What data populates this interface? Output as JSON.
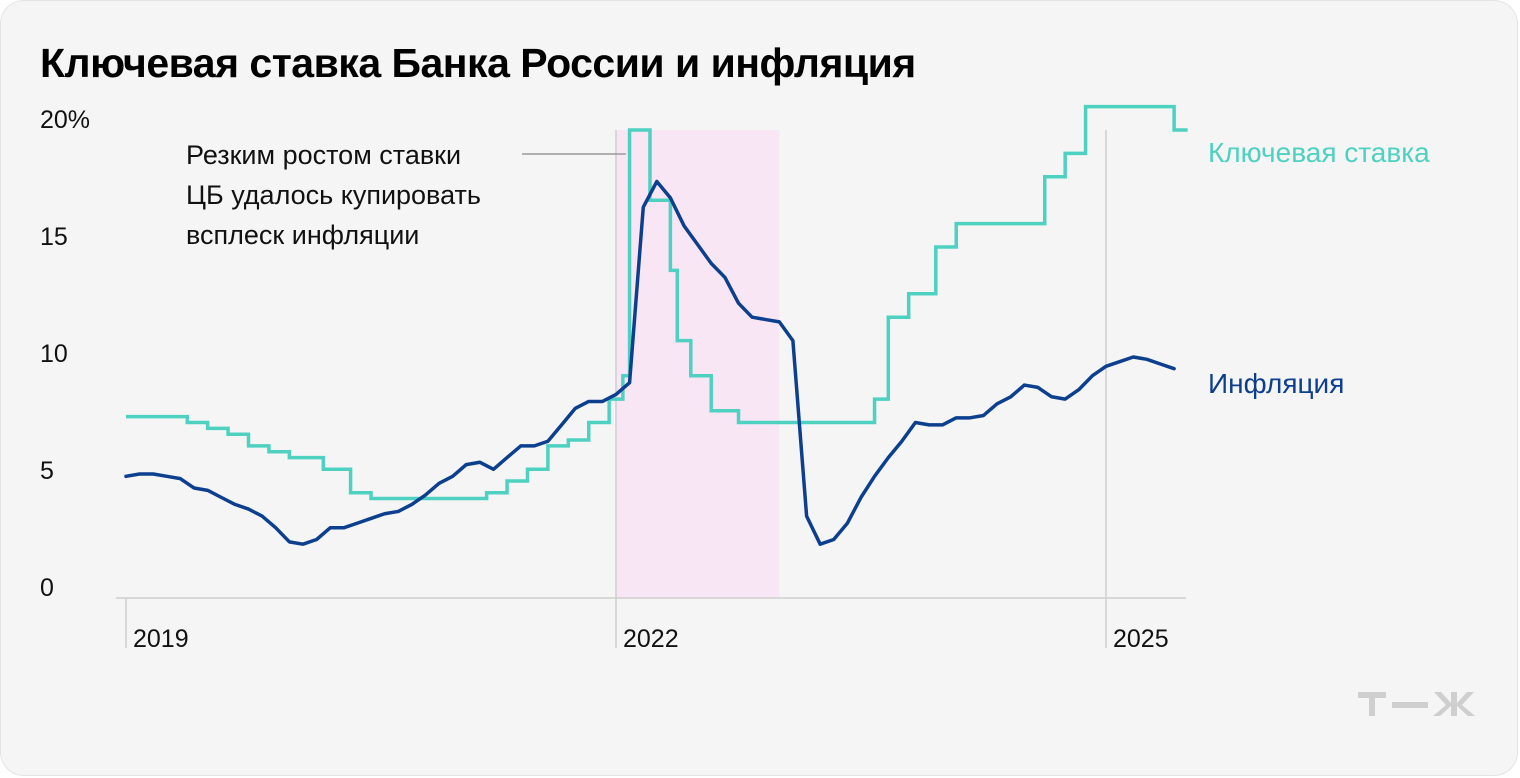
{
  "title": "Ключевая ставка Банка России и инфляция",
  "logo_text": "т—ж",
  "annotation": [
    "Резким ростом ставки",
    "ЦБ удалось купировать",
    "всплеск инфляции"
  ],
  "colors": {
    "rate": "#4fd1c1",
    "inflation": "#0d3f8f",
    "highlight": "#f8e6f5",
    "grid": "#cfcfcf"
  },
  "chart_data": {
    "type": "line",
    "title": "Ключевая ставка Банка России и инфляция",
    "xlabel": "",
    "ylabel": "",
    "ylim": [
      0,
      20
    ],
    "xlim": [
      2019.0,
      2025.5
    ],
    "yticks": [
      {
        "value": 0,
        "label": "0"
      },
      {
        "value": 5,
        "label": "5"
      },
      {
        "value": 10,
        "label": "10"
      },
      {
        "value": 15,
        "label": "15"
      },
      {
        "value": 20,
        "label": "20%"
      }
    ],
    "xticks": [
      {
        "value": 2019,
        "label": "2019"
      },
      {
        "value": 2022,
        "label": "2022"
      },
      {
        "value": 2025,
        "label": "2025"
      }
    ],
    "highlight_range": [
      2022.0,
      2023.0
    ],
    "series": [
      {
        "name": "Ключевая ставка",
        "style": "step",
        "points": [
          [
            2019.0,
            7.75
          ],
          [
            2019.375,
            7.5
          ],
          [
            2019.5,
            7.25
          ],
          [
            2019.625,
            7.0
          ],
          [
            2019.75,
            6.5
          ],
          [
            2019.875,
            6.25
          ],
          [
            2020.0,
            6.0
          ],
          [
            2020.208,
            5.5
          ],
          [
            2020.375,
            4.5
          ],
          [
            2020.5,
            4.25
          ],
          [
            2021.208,
            4.5
          ],
          [
            2021.333,
            5.0
          ],
          [
            2021.458,
            5.5
          ],
          [
            2021.583,
            6.5
          ],
          [
            2021.708,
            6.75
          ],
          [
            2021.833,
            7.5
          ],
          [
            2021.958,
            8.5
          ],
          [
            2022.042,
            9.5
          ],
          [
            2022.083,
            20.0
          ],
          [
            2022.208,
            17.0
          ],
          [
            2022.333,
            14.0
          ],
          [
            2022.375,
            11.0
          ],
          [
            2022.458,
            9.5
          ],
          [
            2022.583,
            8.0
          ],
          [
            2022.75,
            7.5
          ],
          [
            2023.583,
            8.5
          ],
          [
            2023.667,
            12.0
          ],
          [
            2023.792,
            13.0
          ],
          [
            2023.958,
            15.0
          ],
          [
            2024.083,
            16.0
          ],
          [
            2024.625,
            18.0
          ],
          [
            2024.75,
            19.0
          ],
          [
            2024.875,
            21.0
          ],
          [
            2025.417,
            20.0
          ],
          [
            2025.5,
            20.0
          ]
        ]
      },
      {
        "name": "Инфляция",
        "style": "line",
        "points": [
          [
            2019.0,
            5.2
          ],
          [
            2019.083,
            5.3
          ],
          [
            2019.167,
            5.3
          ],
          [
            2019.25,
            5.2
          ],
          [
            2019.333,
            5.1
          ],
          [
            2019.417,
            4.7
          ],
          [
            2019.5,
            4.6
          ],
          [
            2019.583,
            4.3
          ],
          [
            2019.667,
            4.0
          ],
          [
            2019.75,
            3.8
          ],
          [
            2019.833,
            3.5
          ],
          [
            2019.917,
            3.0
          ],
          [
            2020.0,
            2.4
          ],
          [
            2020.083,
            2.3
          ],
          [
            2020.167,
            2.5
          ],
          [
            2020.25,
            3.0
          ],
          [
            2020.333,
            3.0
          ],
          [
            2020.417,
            3.2
          ],
          [
            2020.5,
            3.4
          ],
          [
            2020.583,
            3.6
          ],
          [
            2020.667,
            3.7
          ],
          [
            2020.75,
            4.0
          ],
          [
            2020.833,
            4.4
          ],
          [
            2020.917,
            4.9
          ],
          [
            2021.0,
            5.2
          ],
          [
            2021.083,
            5.7
          ],
          [
            2021.167,
            5.8
          ],
          [
            2021.25,
            5.5
          ],
          [
            2021.333,
            6.0
          ],
          [
            2021.417,
            6.5
          ],
          [
            2021.5,
            6.5
          ],
          [
            2021.583,
            6.7
          ],
          [
            2021.667,
            7.4
          ],
          [
            2021.75,
            8.1
          ],
          [
            2021.833,
            8.4
          ],
          [
            2021.917,
            8.4
          ],
          [
            2022.0,
            8.7
          ],
          [
            2022.083,
            9.2
          ],
          [
            2022.167,
            16.7
          ],
          [
            2022.25,
            17.8
          ],
          [
            2022.333,
            17.1
          ],
          [
            2022.417,
            15.9
          ],
          [
            2022.5,
            15.1
          ],
          [
            2022.583,
            14.3
          ],
          [
            2022.667,
            13.7
          ],
          [
            2022.75,
            12.6
          ],
          [
            2022.833,
            12.0
          ],
          [
            2022.917,
            11.9
          ],
          [
            2023.0,
            11.8
          ],
          [
            2023.083,
            11.0
          ],
          [
            2023.167,
            3.5
          ],
          [
            2023.25,
            2.3
          ],
          [
            2023.333,
            2.5
          ],
          [
            2023.417,
            3.2
          ],
          [
            2023.5,
            4.3
          ],
          [
            2023.583,
            5.2
          ],
          [
            2023.667,
            6.0
          ],
          [
            2023.75,
            6.7
          ],
          [
            2023.833,
            7.5
          ],
          [
            2023.917,
            7.4
          ],
          [
            2024.0,
            7.4
          ],
          [
            2024.083,
            7.7
          ],
          [
            2024.167,
            7.7
          ],
          [
            2024.25,
            7.8
          ],
          [
            2024.333,
            8.3
          ],
          [
            2024.417,
            8.6
          ],
          [
            2024.5,
            9.1
          ],
          [
            2024.583,
            9.0
          ],
          [
            2024.667,
            8.6
          ],
          [
            2024.75,
            8.5
          ],
          [
            2024.833,
            8.9
          ],
          [
            2024.917,
            9.5
          ],
          [
            2025.0,
            9.9
          ],
          [
            2025.083,
            10.1
          ],
          [
            2025.167,
            10.3
          ],
          [
            2025.25,
            10.2
          ],
          [
            2025.333,
            10.0
          ],
          [
            2025.417,
            9.8
          ]
        ]
      }
    ]
  }
}
